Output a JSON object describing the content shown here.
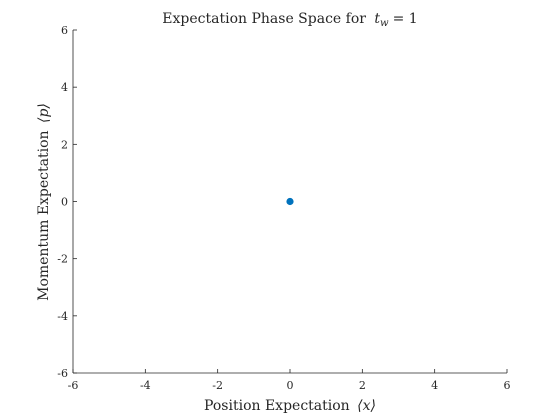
{
  "chart_data": {
    "type": "scatter",
    "title": "Expectation Phase Space for tw = 1",
    "title_text": "Expectation Phase Space for",
    "title_symbol": "t",
    "title_subscript": "w",
    "title_rhs": "= 1",
    "xlabel": "Position Expectation",
    "xlabel_symbol": "⟨x⟩",
    "ylabel": "Momentum Expectation",
    "ylabel_symbol": "⟨p⟩",
    "xlim": [
      -6,
      6
    ],
    "ylim": [
      -6,
      6
    ],
    "xticks": [
      -6,
      -4,
      -2,
      0,
      2,
      4,
      6
    ],
    "yticks": [
      -6,
      -4,
      -2,
      0,
      2,
      4,
      6
    ],
    "grid": false,
    "series": [
      {
        "x": [
          0
        ],
        "y": [
          0
        ],
        "color": "#0072BD"
      }
    ]
  }
}
